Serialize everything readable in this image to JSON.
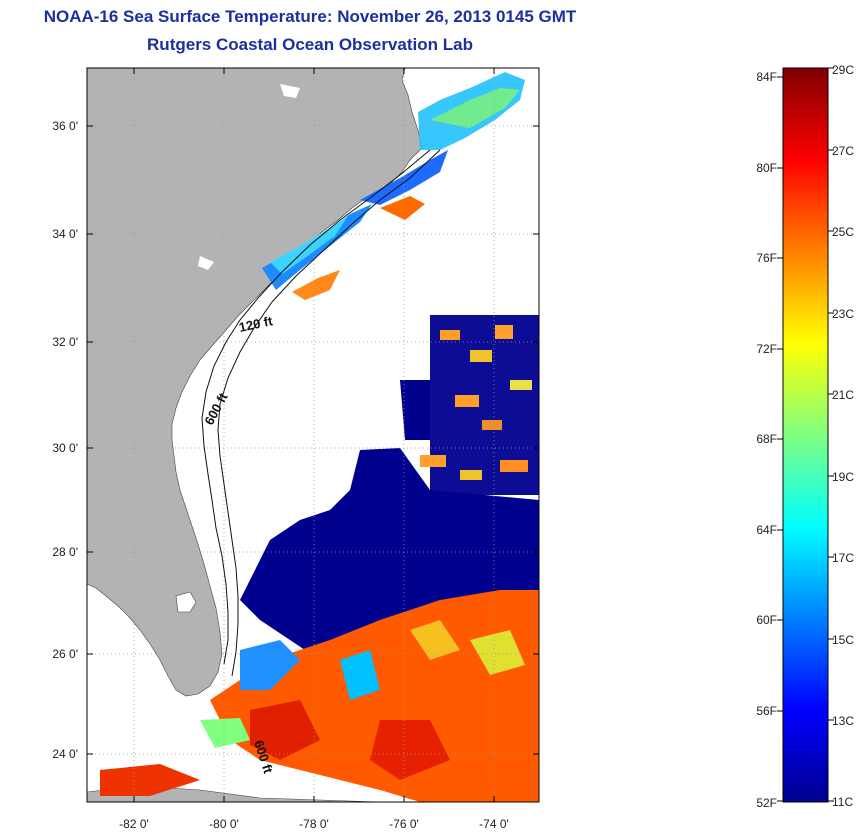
{
  "header": {
    "title_line1": "NOAA-16 Sea Surface Temperature:  November 26, 2013 0145 GMT",
    "title_line2": "Rutgers Coastal Ocean Observation Lab"
  },
  "map": {
    "lat_ticks": [
      "36 0'",
      "34 0'",
      "32 0'",
      "30 0'",
      "28 0'",
      "26 0'",
      "24 0'"
    ],
    "lon_ticks": [
      "-82 0'",
      "-80 0'",
      "-78 0'",
      "-76 0'",
      "-74 0'"
    ],
    "contour_labels": [
      "120 ft",
      "600 ft",
      "600 ft"
    ],
    "colors": {
      "land": "#b3b3b3",
      "ocean_cloud": "#ffffff",
      "grid": "#999999"
    }
  },
  "colorbar": {
    "fahrenheit_labels": [
      "84F",
      "80F",
      "76F",
      "72F",
      "68F",
      "64F",
      "60F",
      "56F",
      "52F"
    ],
    "celsius_labels": [
      "29C",
      "27C",
      "25C",
      "23C",
      "21C",
      "19C",
      "17C",
      "15C",
      "13C",
      "11C"
    ],
    "min_c": 11,
    "max_c": 29,
    "colormap": "jet"
  }
}
